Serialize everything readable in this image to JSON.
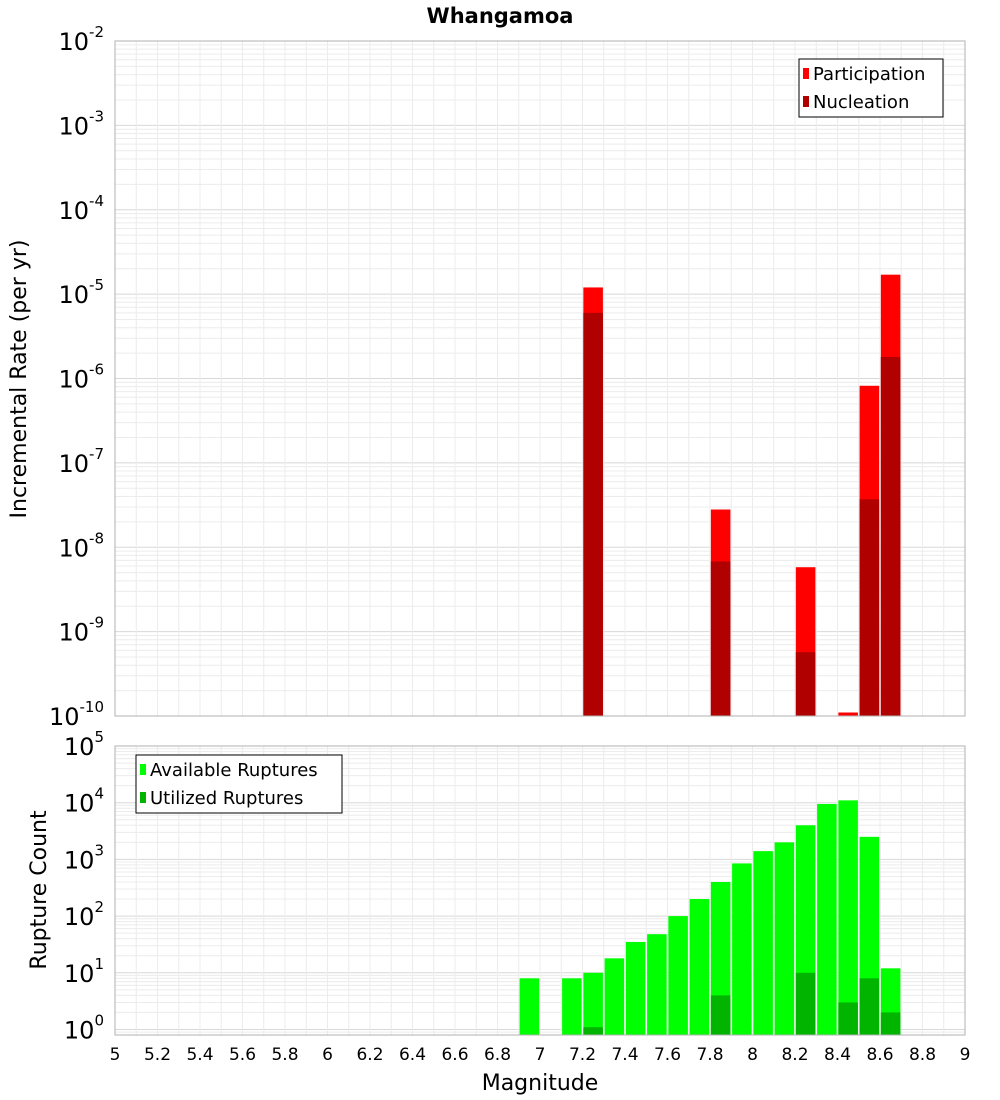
{
  "chart_data": [
    {
      "type": "bar",
      "title": "Whangamoa",
      "ylabel": "Incremental Rate (per yr)",
      "xlabel": "",
      "yscale": "log",
      "ylim": [
        1e-10,
        0.01
      ],
      "xlim": [
        5,
        9
      ],
      "grid": true,
      "legend_position": "top-right",
      "colors": {
        "participation": "#ff0000",
        "nucleation": "#b00000"
      },
      "series": [
        {
          "name": "Participation",
          "x": [
            7.25,
            7.85,
            8.25,
            8.45,
            8.55,
            8.65
          ],
          "values": [
            1.2e-05,
            2.8e-08,
            5.8e-09,
            1.1e-10,
            8.2e-07,
            1.7e-05
          ]
        },
        {
          "name": "Nucleation",
          "x": [
            7.25,
            7.85,
            8.25,
            8.55,
            8.65
          ],
          "values": [
            6e-06,
            6.8e-09,
            5.7e-10,
            3.7e-08,
            1.8e-06
          ]
        }
      ],
      "yticks": [
        {
          "base": "10",
          "exp": "-10",
          "value": 1e-10
        },
        {
          "base": "10",
          "exp": "-9",
          "value": 1e-09
        },
        {
          "base": "10",
          "exp": "-8",
          "value": 1e-08
        },
        {
          "base": "10",
          "exp": "-7",
          "value": 1e-07
        },
        {
          "base": "10",
          "exp": "-6",
          "value": 1e-06
        },
        {
          "base": "10",
          "exp": "-5",
          "value": 1e-05
        },
        {
          "base": "10",
          "exp": "-4",
          "value": 0.0001
        },
        {
          "base": "10",
          "exp": "-3",
          "value": 0.001
        },
        {
          "base": "10",
          "exp": "-2",
          "value": 0.01
        }
      ]
    },
    {
      "type": "bar",
      "ylabel": "Rupture Count",
      "xlabel": "Magnitude",
      "yscale": "log",
      "ylim": [
        0.8,
        100000.0
      ],
      "xlim": [
        5,
        9
      ],
      "grid": true,
      "legend_position": "top-left",
      "colors": {
        "available": "#00ff00",
        "utilized": "#00b400"
      },
      "series": [
        {
          "name": "Available Ruptures",
          "x": [
            6.95,
            7.15,
            7.25,
            7.35,
            7.45,
            7.55,
            7.65,
            7.75,
            7.85,
            7.95,
            8.05,
            8.15,
            8.25,
            8.35,
            8.45,
            8.55,
            8.65
          ],
          "values": [
            8,
            8,
            10,
            18,
            35,
            48,
            100,
            200,
            400,
            850,
            1400,
            2000,
            4000,
            9500,
            11000,
            2500,
            12
          ]
        },
        {
          "name": "Utilized Ruptures",
          "x": [
            7.25,
            7.85,
            8.25,
            8.45,
            8.55,
            8.65
          ],
          "values": [
            1.1,
            4,
            10,
            3,
            8,
            2
          ]
        }
      ],
      "yticks": [
        {
          "base": "10",
          "exp": "0",
          "value": 1
        },
        {
          "base": "10",
          "exp": "1",
          "value": 10
        },
        {
          "base": "10",
          "exp": "2",
          "value": 100
        },
        {
          "base": "10",
          "exp": "3",
          "value": 1000
        },
        {
          "base": "10",
          "exp": "4",
          "value": 10000
        },
        {
          "base": "10",
          "exp": "5",
          "value": 100000
        }
      ],
      "xticks": [
        "5",
        "5.2",
        "5.4",
        "5.6",
        "5.8",
        "6",
        "6.2",
        "6.4",
        "6.6",
        "6.8",
        "7",
        "7.2",
        "7.4",
        "7.6",
        "7.8",
        "8",
        "8.2",
        "8.4",
        "8.6",
        "8.8",
        "9"
      ]
    }
  ]
}
